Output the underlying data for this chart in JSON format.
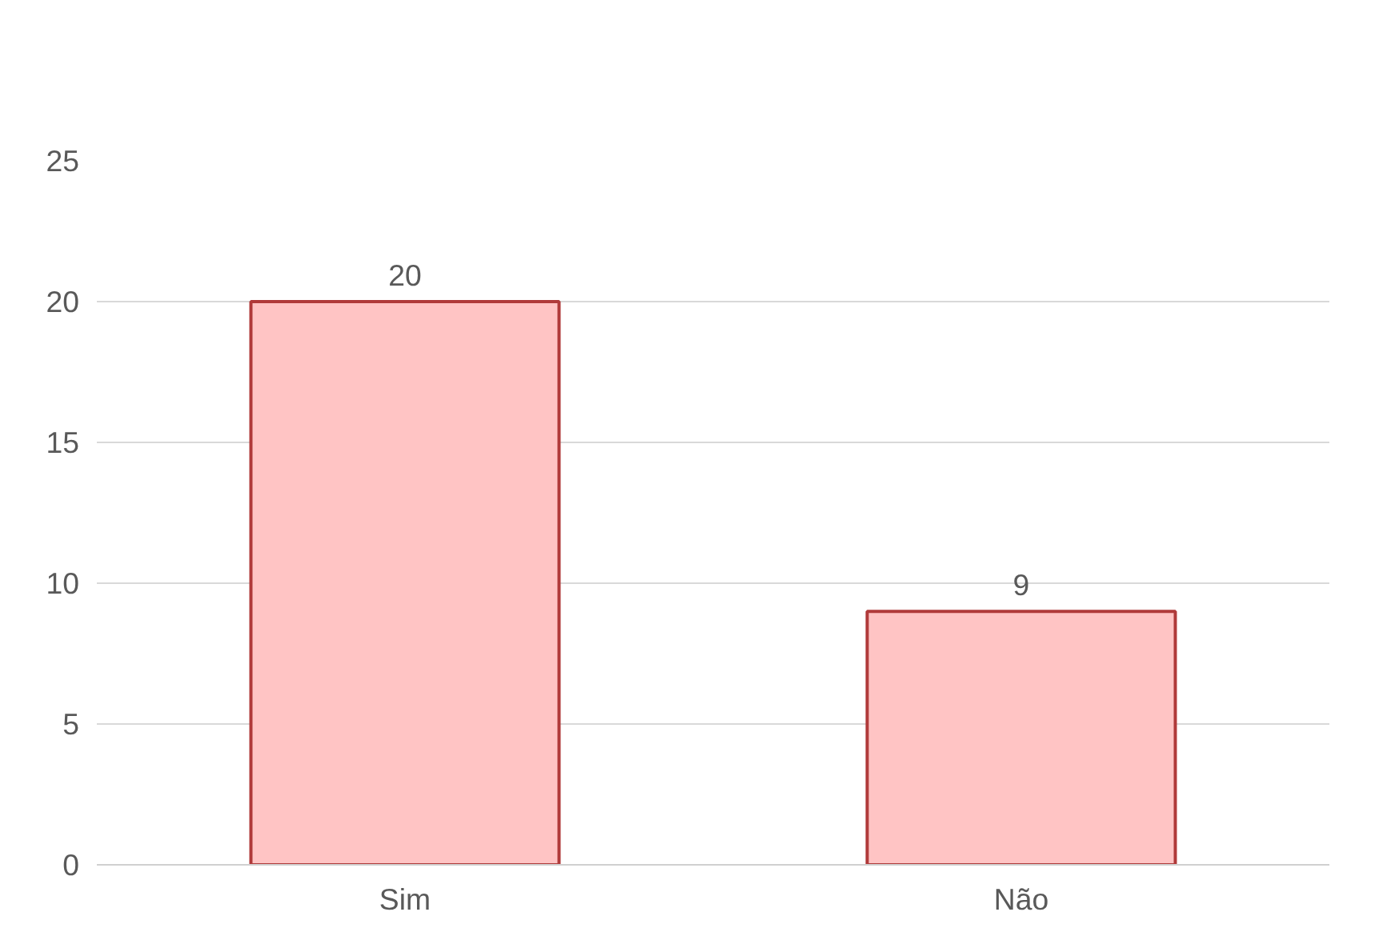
{
  "chart_data": {
    "type": "bar",
    "categories": [
      "Sim",
      "Não"
    ],
    "values": [
      20,
      9
    ],
    "color": "#ffc4c4",
    "ylim": [
      0,
      25
    ],
    "yticks": [
      0,
      5,
      10,
      15,
      20,
      25
    ],
    "grid": "y",
    "data_labels": true
  }
}
